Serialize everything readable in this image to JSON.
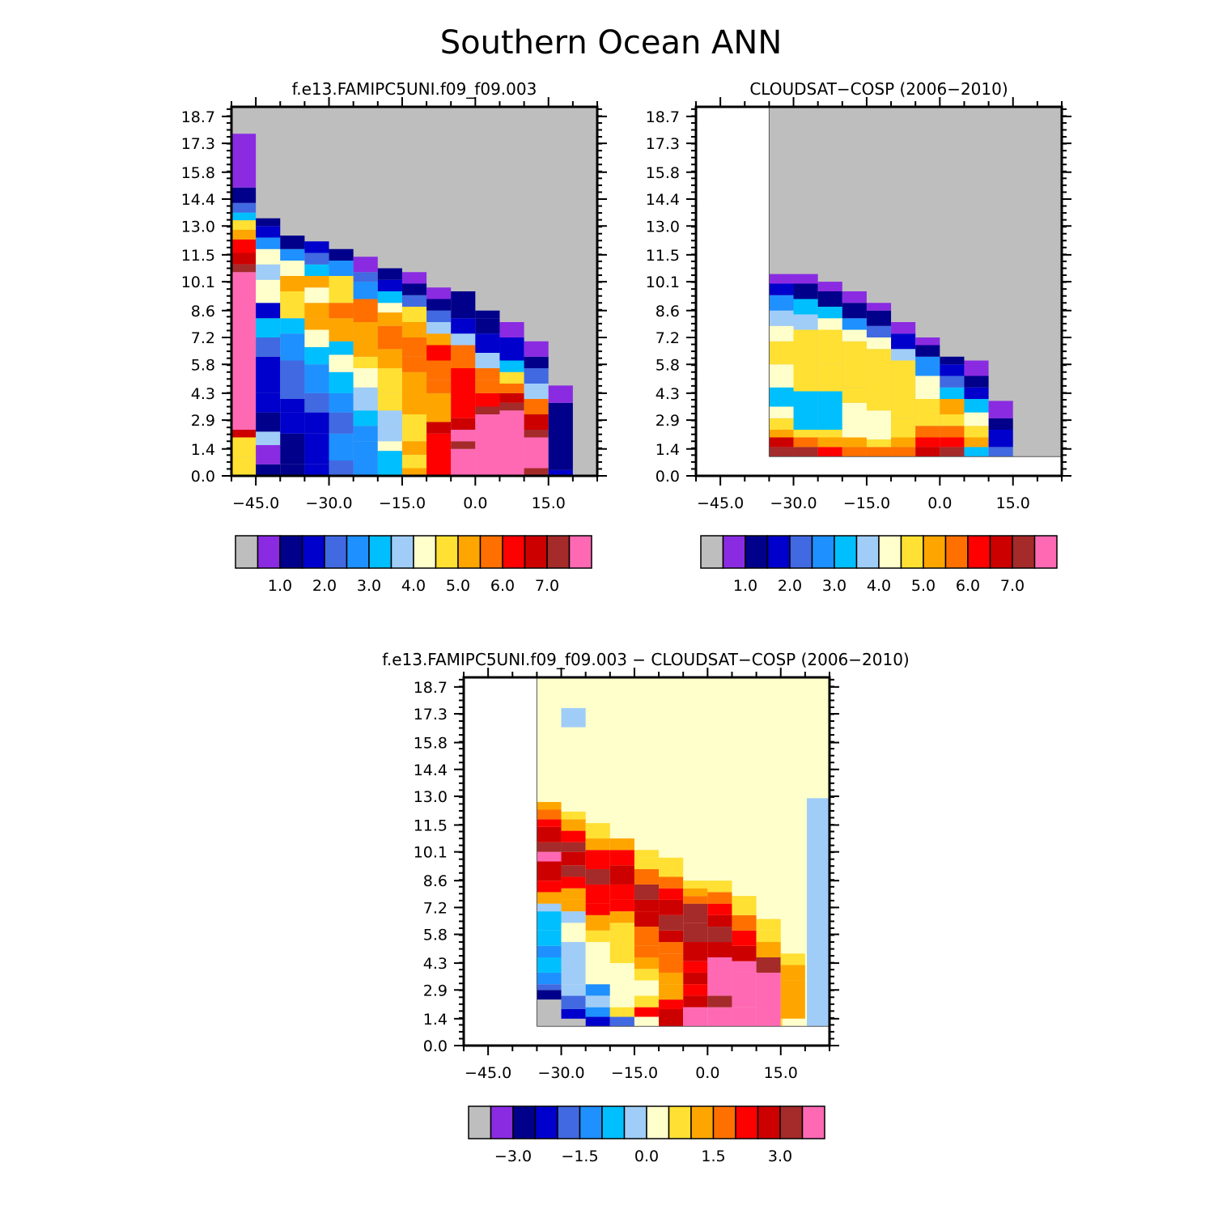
{
  "figure": {
    "title": "Southern Ocean ANN"
  },
  "chart_data": [
    {
      "type": "heatmap",
      "title": "f.e13.FAMIPC5UNI.f09_f09.003",
      "x_ticks": [
        "−45.0",
        "−30.0",
        "−15.0",
        "0.0",
        "15.0"
      ],
      "y_ticks": [
        "0.0",
        "1.4",
        "2.9",
        "4.3",
        "5.8",
        "7.2",
        "8.6",
        "10.1",
        "11.5",
        "13.0",
        "14.4",
        "15.8",
        "17.3",
        "18.7"
      ],
      "xlim": [
        -50,
        25
      ],
      "ylim": [
        0,
        19.2
      ],
      "colorbar": {
        "labels": [
          "1.0",
          "2.0",
          "3.0",
          "4.0",
          "5.0",
          "6.0",
          "7.0"
        ],
        "colors": [
          "#bebebe",
          "#8a2be2",
          "#00008b",
          "#0000cd",
          "#4169e1",
          "#1e90ff",
          "#00bfff",
          "#a0cdf8",
          "#ffffcc",
          "#ffe033",
          "#ffa500",
          "#ff7000",
          "#ff0000",
          "#cd0000",
          "#a52a2a",
          "#ff69b4"
        ]
      },
      "note": "approximate reconstruction of cell colors"
    },
    {
      "type": "heatmap",
      "title": "CLOUDSAT−COSP (2006−2010)",
      "x_ticks": [
        "−45.0",
        "−30.0",
        "−15.0",
        "0.0",
        "15.0"
      ],
      "y_ticks": [
        "0.0",
        "1.4",
        "2.9",
        "4.3",
        "5.8",
        "7.2",
        "8.6",
        "10.1",
        "11.5",
        "13.0",
        "14.4",
        "15.8",
        "17.3",
        "18.7"
      ],
      "xlim": [
        -50,
        25
      ],
      "ylim": [
        0,
        19.2
      ],
      "colorbar": {
        "labels": [
          "1.0",
          "2.0",
          "3.0",
          "4.0",
          "5.0",
          "6.0",
          "7.0"
        ],
        "colors": [
          "#bebebe",
          "#8a2be2",
          "#00008b",
          "#0000cd",
          "#4169e1",
          "#1e90ff",
          "#00bfff",
          "#a0cdf8",
          "#ffffcc",
          "#ffe033",
          "#ffa500",
          "#ff7000",
          "#ff0000",
          "#cd0000",
          "#a52a2a",
          "#ff69b4"
        ]
      }
    },
    {
      "type": "heatmap",
      "title": "f.e13.FAMIPC5UNI.f09_f09.003 − CLOUDSAT−COSP (2006−2010)",
      "x_ticks": [
        "−45.0",
        "−30.0",
        "−15.0",
        "0.0",
        "15.0"
      ],
      "y_ticks": [
        "0.0",
        "1.4",
        "2.9",
        "4.3",
        "5.8",
        "7.2",
        "8.6",
        "10.1",
        "11.5",
        "13.0",
        "14.4",
        "15.8",
        "17.3",
        "18.7"
      ],
      "xlim": [
        -50,
        25
      ],
      "ylim": [
        0,
        19.2
      ],
      "colorbar": {
        "labels": [
          "−3.0",
          "−1.5",
          "0.0",
          "1.5",
          "3.0"
        ],
        "colors": [
          "#bebebe",
          "#8a2be2",
          "#00008b",
          "#0000cd",
          "#4169e1",
          "#1e90ff",
          "#00bfff",
          "#a0cdf8",
          "#ffffcc",
          "#ffe033",
          "#ffa500",
          "#ff7000",
          "#ff0000",
          "#cd0000",
          "#a52a2a",
          "#ff69b4"
        ]
      }
    }
  ]
}
